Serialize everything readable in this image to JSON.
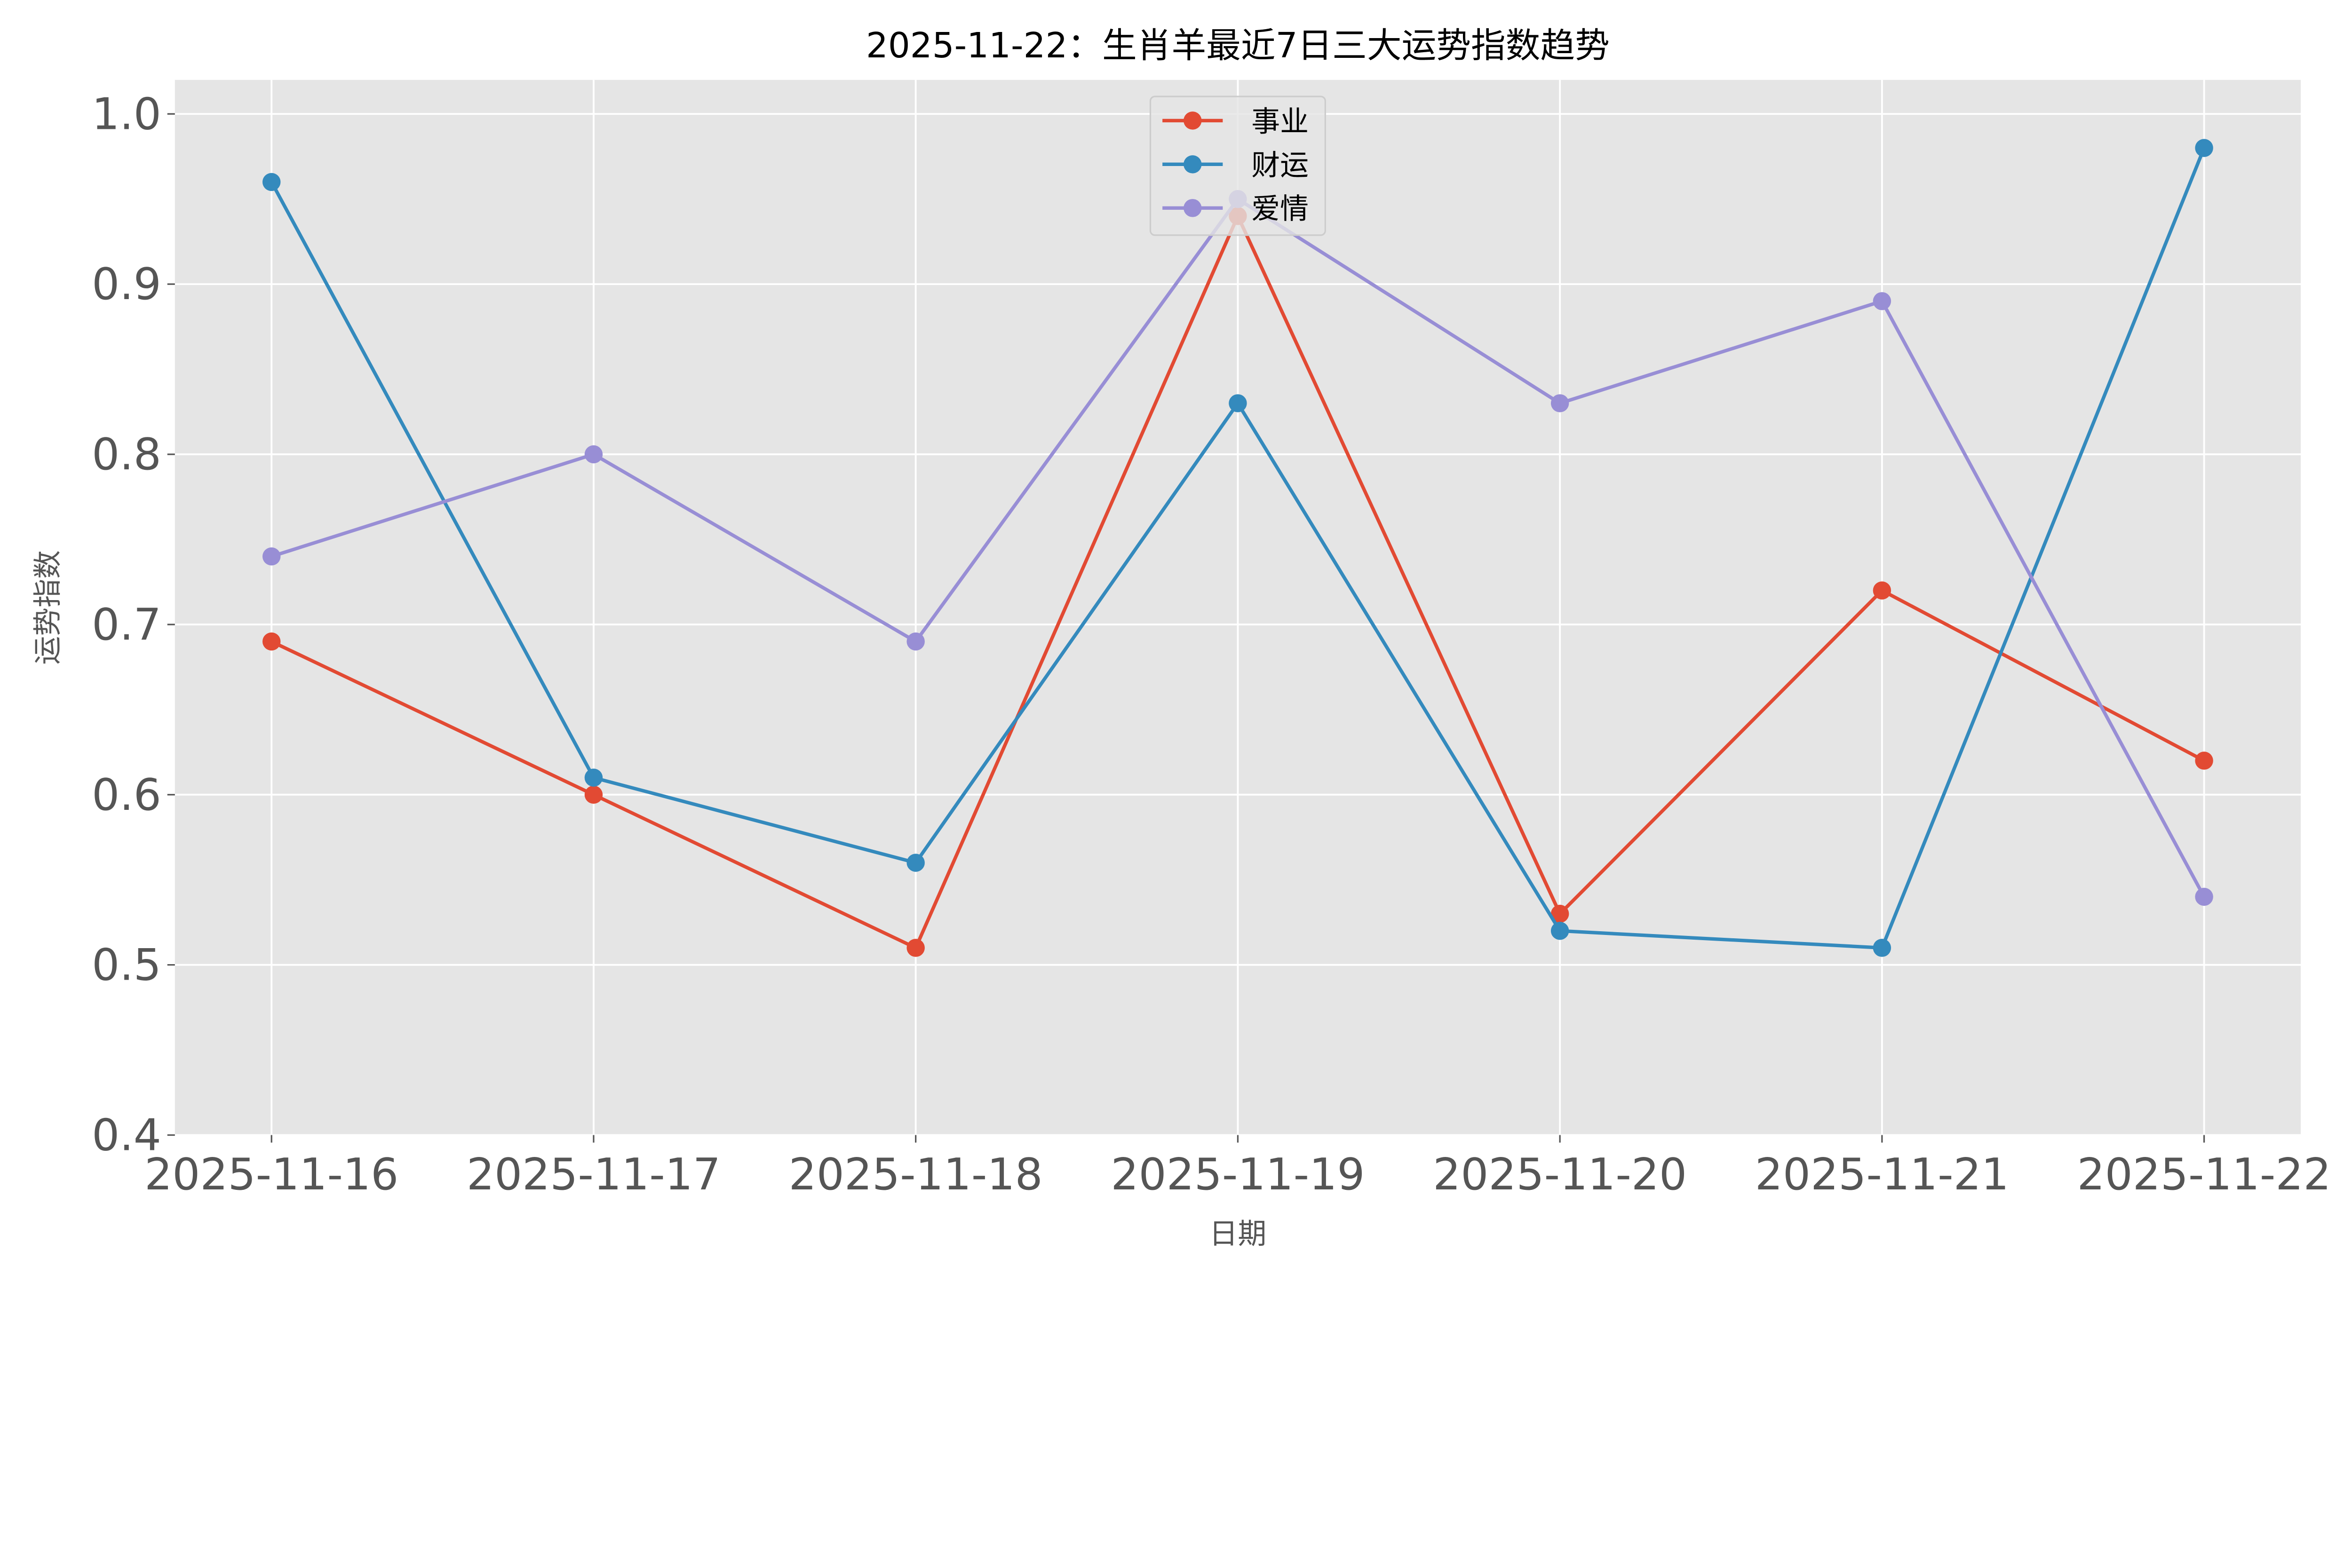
{
  "chart_data": {
    "type": "line",
    "title": "2025-11-22：生肖羊最近7日三大运势指数趋势",
    "xlabel": "日期",
    "ylabel": "运势指数",
    "categories": [
      "2025-11-16",
      "2025-11-17",
      "2025-11-18",
      "2025-11-19",
      "2025-11-20",
      "2025-11-21",
      "2025-11-22"
    ],
    "ylim": [
      0.4,
      1.02
    ],
    "yticks": [
      "0.4",
      "0.5",
      "0.6",
      "0.7",
      "0.8",
      "0.9",
      "1.0"
    ],
    "grid": true,
    "legend_placement": "upper-center",
    "background": "#E5E5E5",
    "series": [
      {
        "name": "事业",
        "color": "#E24A33",
        "values": [
          0.69,
          0.6,
          0.51,
          0.94,
          0.53,
          0.72,
          0.62
        ]
      },
      {
        "name": "财运",
        "color": "#348ABD",
        "values": [
          0.96,
          0.61,
          0.56,
          0.83,
          0.52,
          0.51,
          0.98
        ]
      },
      {
        "name": "爱情",
        "color": "#988ED5",
        "values": [
          0.74,
          0.8,
          0.69,
          0.95,
          0.83,
          0.89,
          0.54
        ]
      }
    ]
  }
}
